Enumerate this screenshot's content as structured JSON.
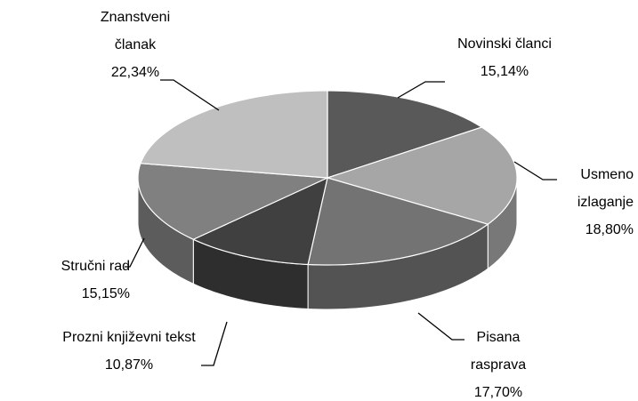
{
  "chart_data": {
    "type": "pie3d",
    "categories": [
      "Novinski članci",
      "Usmeno izlaganje",
      "Pisana rasprava",
      "Prozni književni tekst",
      "Stručni rad",
      "Znanstveni članak"
    ],
    "values": [
      15.14,
      18.8,
      17.7,
      10.87,
      15.15,
      22.34
    ],
    "value_labels": [
      "15,14%",
      "18,80%",
      "17,70%",
      "10,87%",
      "15,15%",
      "22,34%"
    ],
    "colors": [
      "#595959",
      "#a6a6a6",
      "#737373",
      "#404040",
      "#808080",
      "#bfbfbf"
    ]
  }
}
